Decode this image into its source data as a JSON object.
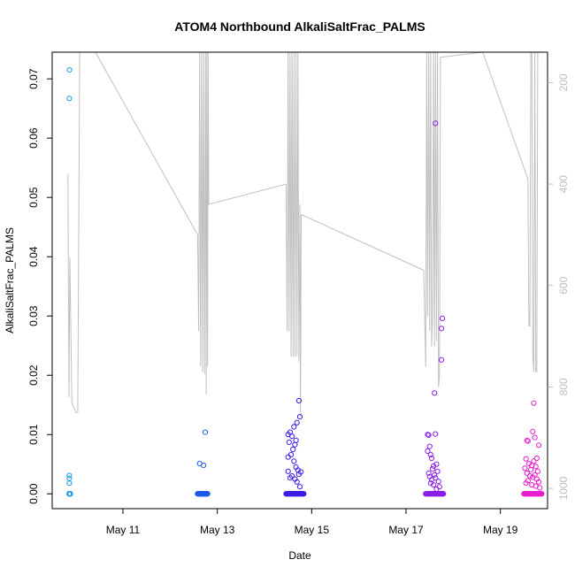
{
  "chart_data": {
    "type": "scatter",
    "title": "ATOM4 Northbound AlkaliSaltFrac_PALMS",
    "xlabel": "Date",
    "ylabel": "AlkaliSaltFrac_PALMS",
    "x_ticks": [
      "May 11",
      "May 13",
      "May 15",
      "May 17",
      "May 19"
    ],
    "y_ticks": [
      "0.00",
      "0.01",
      "0.02",
      "0.03",
      "0.04",
      "0.05",
      "0.06",
      "0.07"
    ],
    "y2_ticks": [
      "200",
      "400",
      "600",
      "800",
      "1000"
    ],
    "xlim": [
      "2014-05-09T12:00",
      "2014-05-20T00:00"
    ],
    "ylim": [
      -0.0025,
      0.0745
    ],
    "y2lim": [
      1040,
      140
    ],
    "y2_reversed": true,
    "grid": false,
    "colors": {
      "pressure_line": "#c0c0c0",
      "flight1": "#1e9be6",
      "flight2": "#1e5ae6",
      "flight3": "#3c1ee6",
      "flight4": "#8c1ee6",
      "flight5": "#e61ecd"
    },
    "series": [
      {
        "color_key": "flight1",
        "x_range": [
          "2014-05-09T20:40",
          "2014-05-09T21:10"
        ],
        "baseline_value": 0.0,
        "points": [
          {
            "x": "2014-05-09T20:45",
            "y": 0.0667
          },
          {
            "x": "2014-05-09T20:50",
            "y": 0.0715
          },
          {
            "x": "2014-05-09T20:42",
            "y": 0.0031
          },
          {
            "x": "2014-05-09T20:44",
            "y": 0.0026
          },
          {
            "x": "2014-05-09T20:43",
            "y": 0.0018
          }
        ]
      },
      {
        "color_key": "flight2",
        "x_range": [
          "2014-05-12T14:00",
          "2014-05-12T19:00"
        ],
        "baseline_value": 0.0,
        "points": [
          {
            "x": "2014-05-12T17:50",
            "y": 0.0104
          },
          {
            "x": "2014-05-12T15:00",
            "y": 0.0051
          },
          {
            "x": "2014-05-12T17:00",
            "y": 0.0048
          }
        ]
      },
      {
        "color_key": "flight3",
        "x_range": [
          "2014-05-14T11:00",
          "2014-05-14T20:00"
        ],
        "baseline_value": 0.0,
        "points": [
          {
            "x": "2014-05-14T17:30",
            "y": 0.0157
          },
          {
            "x": "2014-05-14T18:00",
            "y": 0.013
          },
          {
            "x": "2014-05-14T16:30",
            "y": 0.012
          },
          {
            "x": "2014-05-14T15:00",
            "y": 0.0113
          },
          {
            "x": "2014-05-14T13:00",
            "y": 0.0104
          },
          {
            "x": "2014-05-14T12:00",
            "y": 0.01
          },
          {
            "x": "2014-05-14T14:00",
            "y": 0.0097
          },
          {
            "x": "2014-05-14T16:00",
            "y": 0.009
          },
          {
            "x": "2014-05-14T12:30",
            "y": 0.0087
          },
          {
            "x": "2014-05-14T15:30",
            "y": 0.0083
          },
          {
            "x": "2014-05-14T14:30",
            "y": 0.0075
          },
          {
            "x": "2014-05-14T13:30",
            "y": 0.0066
          },
          {
            "x": "2014-05-14T12:00",
            "y": 0.0062
          },
          {
            "x": "2014-05-14T15:00",
            "y": 0.0055
          },
          {
            "x": "2014-05-14T16:00",
            "y": 0.0045
          },
          {
            "x": "2014-05-14T12:00",
            "y": 0.0038
          },
          {
            "x": "2014-05-14T17:00",
            "y": 0.004
          },
          {
            "x": "2014-05-14T18:30",
            "y": 0.0037
          },
          {
            "x": "2014-05-14T17:30",
            "y": 0.0033
          },
          {
            "x": "2014-05-14T14:00",
            "y": 0.003
          },
          {
            "x": "2014-05-14T13:00",
            "y": 0.0027
          },
          {
            "x": "2014-05-14T15:30",
            "y": 0.0025
          },
          {
            "x": "2014-05-14T16:30",
            "y": 0.002
          },
          {
            "x": "2014-05-14T18:00",
            "y": 0.0012
          }
        ]
      },
      {
        "color_key": "flight4",
        "x_range": [
          "2014-05-17T10:00",
          "2014-05-17T19:00"
        ],
        "baseline_value": 0.0,
        "points": [
          {
            "x": "2014-05-17T15:00",
            "y": 0.0625
          },
          {
            "x": "2014-05-17T18:30",
            "y": 0.0296
          },
          {
            "x": "2014-05-17T18:00",
            "y": 0.0279
          },
          {
            "x": "2014-05-17T18:00",
            "y": 0.0226
          },
          {
            "x": "2014-05-17T14:30",
            "y": 0.017
          },
          {
            "x": "2014-05-17T15:00",
            "y": 0.0101
          },
          {
            "x": "2014-05-17T11:00",
            "y": 0.01
          },
          {
            "x": "2014-05-17T11:30",
            "y": 0.0099
          },
          {
            "x": "2014-05-17T12:00",
            "y": 0.008
          },
          {
            "x": "2014-05-17T11:00",
            "y": 0.0072
          },
          {
            "x": "2014-05-17T12:30",
            "y": 0.0066
          },
          {
            "x": "2014-05-17T13:00",
            "y": 0.006
          },
          {
            "x": "2014-05-17T15:30",
            "y": 0.005
          },
          {
            "x": "2014-05-17T14:00",
            "y": 0.0047
          },
          {
            "x": "2014-05-17T13:30",
            "y": 0.0042
          },
          {
            "x": "2014-05-17T16:00",
            "y": 0.0038
          },
          {
            "x": "2014-05-17T11:30",
            "y": 0.0035
          },
          {
            "x": "2014-05-17T14:30",
            "y": 0.0032
          },
          {
            "x": "2014-05-17T12:00",
            "y": 0.0029
          },
          {
            "x": "2014-05-17T15:00",
            "y": 0.0027
          },
          {
            "x": "2014-05-17T13:00",
            "y": 0.0024
          },
          {
            "x": "2014-05-17T16:30",
            "y": 0.0021
          },
          {
            "x": "2014-05-17T12:30",
            "y": 0.0018
          },
          {
            "x": "2014-05-17T14:00",
            "y": 0.0015
          },
          {
            "x": "2014-05-17T17:00",
            "y": 0.0012
          },
          {
            "x": "2014-05-17T15:30",
            "y": 0.0008
          }
        ]
      },
      {
        "color_key": "flight5",
        "x_range": [
          "2014-05-19T12:00",
          "2014-05-19T21:00"
        ],
        "baseline_value": 0.0,
        "points": [
          {
            "x": "2014-05-19T17:00",
            "y": 0.0153
          },
          {
            "x": "2014-05-19T16:30",
            "y": 0.0105
          },
          {
            "x": "2014-05-19T13:30",
            "y": 0.009
          },
          {
            "x": "2014-05-19T17:30",
            "y": 0.0095
          },
          {
            "x": "2014-05-19T14:00",
            "y": 0.0089
          },
          {
            "x": "2014-05-19T19:30",
            "y": 0.0082
          },
          {
            "x": "2014-05-19T13:00",
            "y": 0.0059
          },
          {
            "x": "2014-05-19T18:30",
            "y": 0.006
          },
          {
            "x": "2014-05-19T17:00",
            "y": 0.0055
          },
          {
            "x": "2014-05-19T14:30",
            "y": 0.0051
          },
          {
            "x": "2014-05-19T16:00",
            "y": 0.0048
          },
          {
            "x": "2014-05-19T18:00",
            "y": 0.0046
          },
          {
            "x": "2014-05-19T12:30",
            "y": 0.0043
          },
          {
            "x": "2014-05-19T15:30",
            "y": 0.0041
          },
          {
            "x": "2014-05-19T19:00",
            "y": 0.0038
          },
          {
            "x": "2014-05-19T13:30",
            "y": 0.0035
          },
          {
            "x": "2014-05-19T17:30",
            "y": 0.0032
          },
          {
            "x": "2014-05-19T15:00",
            "y": 0.003
          },
          {
            "x": "2014-05-19T16:30",
            "y": 0.0028
          },
          {
            "x": "2014-05-19T18:30",
            "y": 0.0025
          },
          {
            "x": "2014-05-19T14:00",
            "y": 0.0022
          },
          {
            "x": "2014-05-19T19:30",
            "y": 0.002
          },
          {
            "x": "2014-05-19T13:00",
            "y": 0.0018
          },
          {
            "x": "2014-05-19T16:00",
            "y": 0.0015
          },
          {
            "x": "2014-05-19T18:00",
            "y": 0.0013
          },
          {
            "x": "2014-05-19T20:00",
            "y": 0.001
          }
        ]
      }
    ],
    "pressure_profile": [
      [
        "2014-05-09T20:00",
        380
      ],
      [
        "2014-05-09T20:30",
        820
      ],
      [
        "2014-05-09T21:00",
        545
      ],
      [
        "2014-05-09T22:00",
        830
      ],
      [
        "2014-05-10T00:00",
        850
      ],
      [
        "2014-05-10T01:00",
        850
      ],
      [
        "2014-05-10T02:00",
        140
      ],
      [
        "2014-05-10T10:00",
        140
      ],
      [
        "2014-05-12T14:00",
        500
      ],
      [
        "2014-05-12T14:30",
        690
      ],
      [
        "2014-05-12T15:00",
        140
      ],
      [
        "2014-05-12T15:30",
        760
      ],
      [
        "2014-05-12T16:00",
        140
      ],
      [
        "2014-05-12T16:30",
        770
      ],
      [
        "2014-05-12T17:00",
        140
      ],
      [
        "2014-05-12T17:30",
        775
      ],
      [
        "2014-05-12T18:00",
        140
      ],
      [
        "2014-05-12T18:20",
        815
      ],
      [
        "2014-05-12T18:40",
        140
      ],
      [
        "2014-05-12T19:00",
        760
      ],
      [
        "2014-05-12T19:20",
        140
      ],
      [
        "2014-05-12T19:40",
        440
      ],
      [
        "2014-05-14T11:00",
        400
      ],
      [
        "2014-05-14T11:30",
        690
      ],
      [
        "2014-05-14T12:00",
        140
      ],
      [
        "2014-05-14T12:30",
        690
      ],
      [
        "2014-05-14T13:00",
        140
      ],
      [
        "2014-05-14T13:30",
        740
      ],
      [
        "2014-05-14T14:00",
        140
      ],
      [
        "2014-05-14T14:30",
        740
      ],
      [
        "2014-05-14T15:00",
        140
      ],
      [
        "2014-05-14T15:30",
        740
      ],
      [
        "2014-05-14T16:00",
        140
      ],
      [
        "2014-05-14T16:30",
        740
      ],
      [
        "2014-05-14T17:00",
        140
      ],
      [
        "2014-05-14T17:30",
        750
      ],
      [
        "2014-05-14T18:00",
        440
      ],
      [
        "2014-05-14T18:20",
        860
      ],
      [
        "2014-05-14T18:40",
        460
      ],
      [
        "2014-05-17T09:00",
        570
      ],
      [
        "2014-05-17T10:00",
        760
      ],
      [
        "2014-05-17T10:30",
        140
      ],
      [
        "2014-05-17T11:00",
        660
      ],
      [
        "2014-05-17T11:30",
        140
      ],
      [
        "2014-05-17T12:00",
        690
      ],
      [
        "2014-05-17T12:30",
        140
      ],
      [
        "2014-05-17T13:00",
        720
      ],
      [
        "2014-05-17T13:30",
        660
      ],
      [
        "2014-05-17T14:00",
        140
      ],
      [
        "2014-05-17T14:30",
        720
      ],
      [
        "2014-05-17T15:00",
        140
      ],
      [
        "2014-05-17T15:30",
        710
      ],
      [
        "2014-05-17T16:00",
        140
      ],
      [
        "2014-05-17T16:30",
        800
      ],
      [
        "2014-05-17T17:00",
        780
      ],
      [
        "2014-05-17T17:30",
        150
      ],
      [
        "2014-05-18T15:00",
        140
      ],
      [
        "2014-05-19T14:00",
        390
      ],
      [
        "2014-05-19T14:30",
        680
      ],
      [
        "2014-05-19T15:00",
        680
      ],
      [
        "2014-05-19T15:30",
        140
      ],
      [
        "2014-05-19T16:00",
        140
      ],
      [
        "2014-05-19T16:30",
        740
      ],
      [
        "2014-05-19T17:00",
        770
      ],
      [
        "2014-05-19T17:30",
        140
      ],
      [
        "2014-05-19T18:00",
        770
      ],
      [
        "2014-05-19T18:30",
        770
      ],
      [
        "2014-05-19T19:00",
        140
      ]
    ]
  }
}
